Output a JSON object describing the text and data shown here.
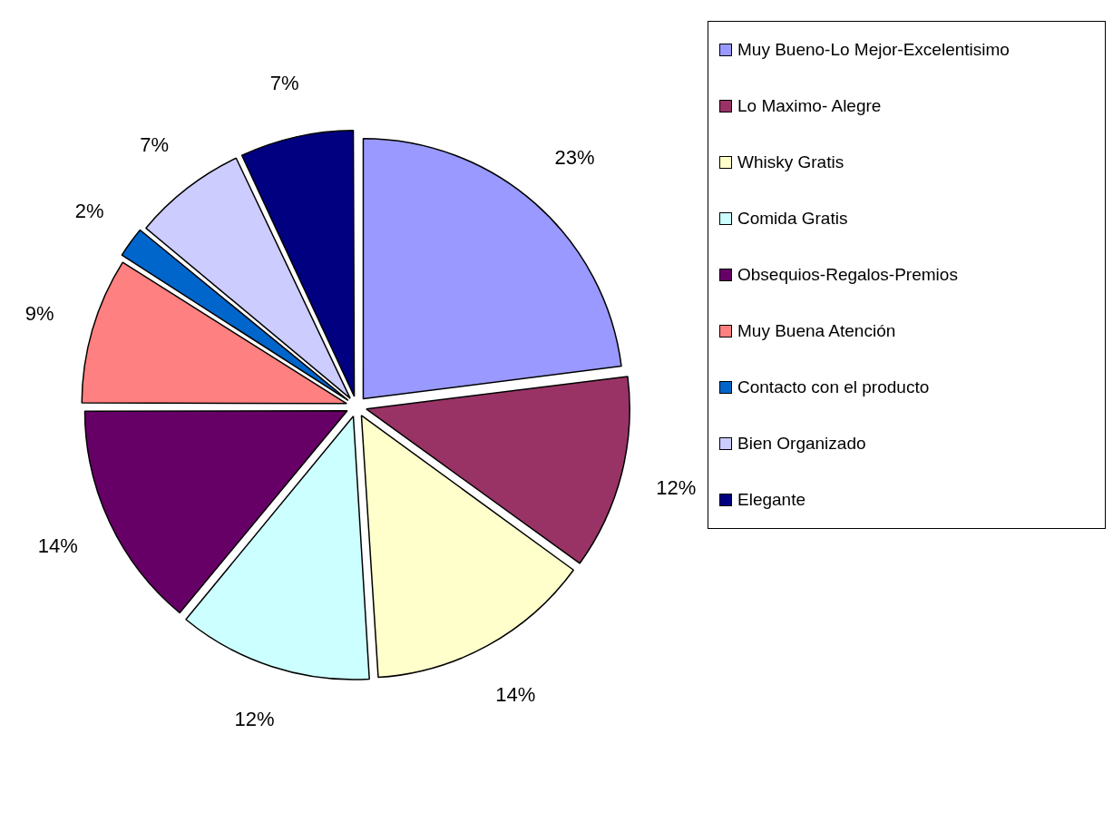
{
  "chart_data": {
    "type": "pie",
    "categories": [
      "Muy Bueno-Lo Mejor-Excelentisimo",
      "Lo Maximo- Alegre",
      "Whisky Gratis",
      "Comida Gratis",
      "Obsequios-Regalos-Premios",
      "Muy Buena Atención",
      "Contacto con el producto",
      "Bien Organizado",
      "Elegante"
    ],
    "values": [
      23,
      12,
      14,
      12,
      14,
      9,
      2,
      7,
      7
    ],
    "value_labels": [
      "23%",
      "12%",
      "14%",
      "12%",
      "14%",
      "9%",
      "2%",
      "7%",
      "7%"
    ],
    "colors": [
      "#9999ff",
      "#993366",
      "#ffffcc",
      "#ccffff",
      "#660066",
      "#ff8080",
      "#0066cc",
      "#ccccff",
      "#000080"
    ],
    "legend": "top right"
  }
}
